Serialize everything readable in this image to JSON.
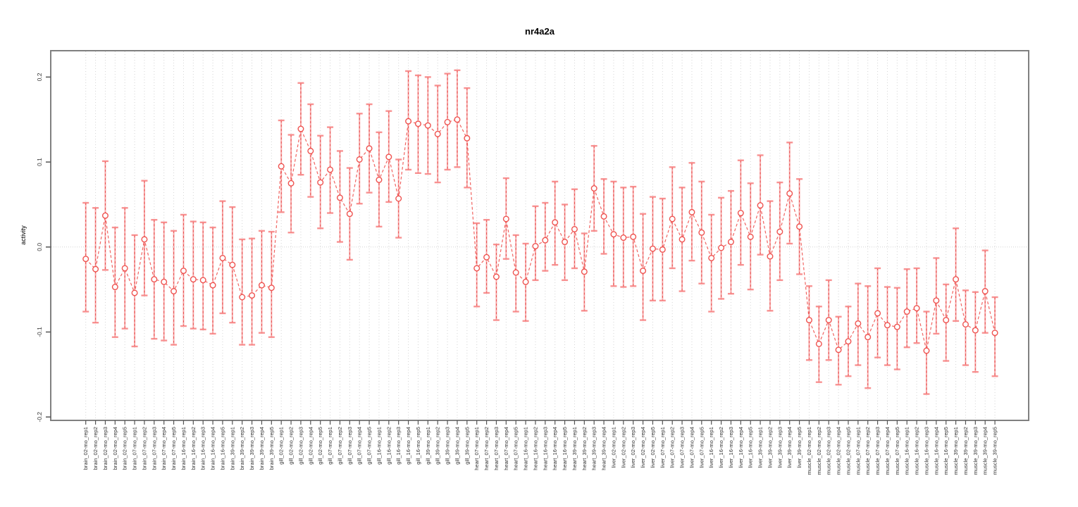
{
  "chart_data": {
    "type": "scatter",
    "title": "nr4a2a",
    "xlabel": "",
    "ylabel": "activity",
    "ylim": [
      -0.204,
      0.231
    ],
    "yticks": [
      -0.2,
      -0.1,
      0.0,
      0.1,
      0.2
    ],
    "grid": "vertical-dotted-per-category-plus-zero-line",
    "legend": "none",
    "colors": {
      "point": "#ef5350",
      "connector": "#ef5350",
      "error_bar": "#f78080",
      "error_bar_dash": "#e53e3e",
      "gridline": "#d4d4d4",
      "axis_box": "#808080",
      "tick_text": "#333333",
      "title_text": "#000000"
    },
    "categories": [
      "brain_02-mo_rep1",
      "brain_02-mo_rep2",
      "brain_02-mo_rep3",
      "brain_02-mo_rep4",
      "brain_02-mo_rep5",
      "brain_07-mo_rep1",
      "brain_07-mo_rep2",
      "brain_07-mo_rep3",
      "brain_07-mo_rep4",
      "brain_07-mo_rep5",
      "brain_16-mo_rep1",
      "brain_16-mo_rep2",
      "brain_16-mo_rep3",
      "brain_16-mo_rep4",
      "brain_16-mo_rep5",
      "brain_39-mo_rep1",
      "brain_39-mo_rep2",
      "brain_39-mo_rep3",
      "brain_39-mo_rep4",
      "brain_39-mo_rep5",
      "gill_02-mo_rep1",
      "gill_02-mo_rep2",
      "gill_02-mo_rep3",
      "gill_02-mo_rep4",
      "gill_02-mo_rep5",
      "gill_07-mo_rep1",
      "gill_07-mo_rep2",
      "gill_07-mo_rep3",
      "gill_07-mo_rep4",
      "gill_07-mo_rep5",
      "gill_16-mo_rep1",
      "gill_16-mo_rep2",
      "gill_16-mo_rep3",
      "gill_16-mo_rep4",
      "gill_16-mo_rep5",
      "gill_39-mo_rep1",
      "gill_39-mo_rep2",
      "gill_39-mo_rep3",
      "gill_39-mo_rep4",
      "gill_39-mo_rep5",
      "heart_07-mo_rep1",
      "heart_07-mo_rep2",
      "heart_07-mo_rep3",
      "heart_07-mo_rep4",
      "heart_07-mo_rep5",
      "heart_16-mo_rep1",
      "heart_16-mo_rep2",
      "heart_16-mo_rep3",
      "heart_16-mo_rep4",
      "heart_16-mo_rep5",
      "heart_39-mo_rep1",
      "heart_39-mo_rep2",
      "heart_39-mo_rep3",
      "heart_39-mo_rep4",
      "liver_02-mo_rep1",
      "liver_02-mo_rep2",
      "liver_02-mo_rep3",
      "liver_02-mo_rep4",
      "liver_02-mo_rep5",
      "liver_07-mo_rep1",
      "liver_07-mo_rep2",
      "liver_07-mo_rep3",
      "liver_07-mo_rep4",
      "liver_07-mo_rep5",
      "liver_16-mo_rep1",
      "liver_16-mo_rep2",
      "liver_16-mo_rep3",
      "liver_16-mo_rep4",
      "liver_16-mo_rep5",
      "liver_39-mo_rep1",
      "liver_39-mo_rep2",
      "liver_39-mo_rep3",
      "liver_39-mo_rep4",
      "liver_39-mo_rep5",
      "muscle_02-mo_rep1",
      "muscle_02-mo_rep2",
      "muscle_02-mo_rep3",
      "muscle_02-mo_rep4",
      "muscle_02-mo_rep5",
      "muscle_07-mo_rep1",
      "muscle_07-mo_rep2",
      "muscle_07-mo_rep3",
      "muscle_07-mo_rep4",
      "muscle_07-mo_rep5",
      "muscle_16-mo_rep1",
      "muscle_16-mo_rep2",
      "muscle_16-mo_rep3",
      "muscle_16-mo_rep4",
      "muscle_16-mo_rep5",
      "muscle_39-mo_rep1",
      "muscle_39-mo_rep2",
      "muscle_39-mo_rep3",
      "muscle_39-mo_rep4",
      "muscle_39-mo_rep5"
    ],
    "series": [
      {
        "name": "activity",
        "values": [
          -0.014,
          -0.026,
          0.037,
          -0.047,
          -0.025,
          -0.054,
          0.009,
          -0.038,
          -0.041,
          -0.052,
          -0.028,
          -0.038,
          -0.039,
          -0.045,
          -0.013,
          -0.021,
          -0.059,
          -0.057,
          -0.045,
          -0.048,
          0.095,
          0.075,
          0.139,
          0.113,
          0.076,
          0.091,
          0.058,
          0.039,
          0.103,
          0.116,
          0.079,
          0.106,
          0.057,
          0.148,
          0.145,
          0.143,
          0.133,
          0.147,
          0.15,
          0.128,
          -0.025,
          -0.012,
          -0.035,
          0.033,
          -0.03,
          -0.041,
          0.001,
          0.008,
          0.029,
          0.006,
          0.021,
          -0.029,
          0.069,
          0.036,
          0.015,
          0.011,
          0.012,
          -0.028,
          -0.002,
          -0.003,
          0.033,
          0.009,
          0.041,
          0.017,
          -0.013,
          -0.001,
          0.006,
          0.04,
          0.012,
          0.049,
          -0.011,
          0.018,
          0.063,
          0.024,
          -0.086,
          -0.114,
          -0.086,
          -0.121,
          -0.111,
          -0.09,
          -0.106,
          -0.078,
          -0.092,
          -0.094,
          -0.076,
          -0.072,
          -0.122,
          -0.063,
          -0.086,
          -0.038,
          -0.091,
          -0.098,
          -0.052,
          -0.101
        ],
        "error_low": [
          -0.076,
          -0.089,
          -0.027,
          -0.106,
          -0.096,
          -0.117,
          -0.057,
          -0.108,
          -0.11,
          -0.115,
          -0.093,
          -0.096,
          -0.097,
          -0.102,
          -0.078,
          -0.089,
          -0.115,
          -0.115,
          -0.101,
          -0.106,
          0.041,
          0.017,
          0.085,
          0.059,
          0.022,
          0.04,
          0.006,
          -0.015,
          0.051,
          0.064,
          0.024,
          0.053,
          0.011,
          0.091,
          0.087,
          0.086,
          0.076,
          0.091,
          0.094,
          0.07,
          -0.07,
          -0.054,
          -0.086,
          -0.014,
          -0.076,
          -0.087,
          -0.039,
          -0.028,
          -0.021,
          -0.039,
          -0.025,
          -0.075,
          0.019,
          -0.008,
          -0.046,
          -0.047,
          -0.046,
          -0.086,
          -0.063,
          -0.063,
          -0.025,
          -0.052,
          -0.016,
          -0.043,
          -0.076,
          -0.061,
          -0.055,
          -0.021,
          -0.05,
          -0.009,
          -0.075,
          -0.039,
          0.004,
          -0.032,
          -0.133,
          -0.159,
          -0.133,
          -0.162,
          -0.152,
          -0.139,
          -0.166,
          -0.13,
          -0.139,
          -0.144,
          -0.118,
          -0.113,
          -0.173,
          -0.102,
          -0.134,
          -0.087,
          -0.139,
          -0.147,
          -0.101,
          -0.152
        ],
        "error_high": [
          0.052,
          0.046,
          0.101,
          0.023,
          0.046,
          0.014,
          0.078,
          0.032,
          0.029,
          0.019,
          0.038,
          0.03,
          0.029,
          0.023,
          0.054,
          0.047,
          0.009,
          0.01,
          0.019,
          0.018,
          0.149,
          0.132,
          0.193,
          0.168,
          0.131,
          0.141,
          0.113,
          0.093,
          0.157,
          0.168,
          0.135,
          0.16,
          0.103,
          0.207,
          0.202,
          0.2,
          0.19,
          0.204,
          0.208,
          0.187,
          0.028,
          0.032,
          0.003,
          0.081,
          0.014,
          0.004,
          0.048,
          0.052,
          0.077,
          0.05,
          0.068,
          0.016,
          0.119,
          0.08,
          0.077,
          0.07,
          0.071,
          0.039,
          0.059,
          0.057,
          0.094,
          0.07,
          0.099,
          0.077,
          0.038,
          0.058,
          0.066,
          0.102,
          0.075,
          0.108,
          0.054,
          0.076,
          0.123,
          0.08,
          -0.046,
          -0.07,
          -0.039,
          -0.082,
          -0.07,
          -0.043,
          -0.046,
          -0.025,
          -0.047,
          -0.048,
          -0.026,
          -0.025,
          -0.076,
          -0.013,
          -0.044,
          0.022,
          -0.051,
          -0.053,
          -0.004,
          -0.059
        ]
      }
    ]
  }
}
